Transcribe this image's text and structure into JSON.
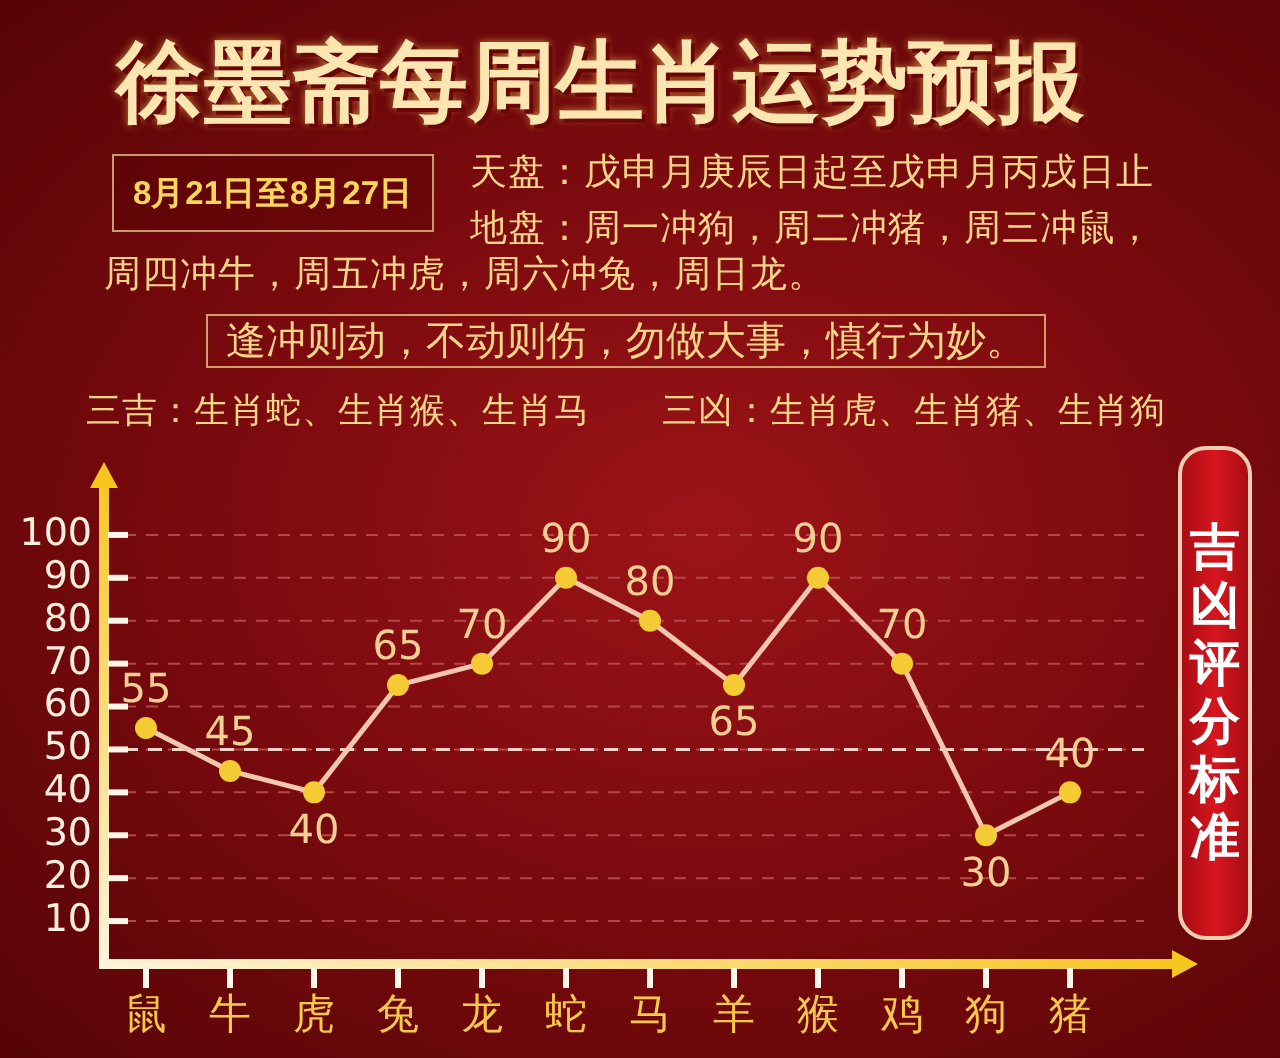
{
  "chart_data": {
    "type": "line",
    "title": "徐墨斋每周生肖运势预报",
    "subtitle": "8月21日至8月27日",
    "annotations": [
      "天盘：戊申月庚辰日起至戊申月丙戌日止",
      "地盘：周一冲狗，周二冲猪，周三冲鼠，周四冲牛，周五冲虎，周六冲兔，周日龙。",
      "逢冲则动，不动则伤，勿做大事，慎行为妙。",
      "三吉：生肖蛇、生肖猴、生肖马",
      "三凶：生肖虎、生肖猪、生肖狗",
      "吉凶评分标准"
    ],
    "categories": [
      "鼠",
      "牛",
      "虎",
      "兔",
      "龙",
      "蛇",
      "马",
      "羊",
      "猴",
      "鸡",
      "狗",
      "猪"
    ],
    "series": [
      {
        "color": "#f3c6ae",
        "values": [
          55,
          45,
          40,
          65,
          70,
          90,
          80,
          65,
          90,
          70,
          30,
          40
        ]
      }
    ],
    "marker": "circle",
    "line_style": "solid",
    "data_labels": true,
    "grid": "y",
    "ylim": [
      0,
      110
    ],
    "yticks": [
      10,
      20,
      30,
      40,
      50,
      60,
      70,
      80,
      90,
      100
    ],
    "ref_lines": [
      {
        "axis": "y",
        "value": 50,
        "color": "#f6d5c8",
        "line_style": "dashed"
      }
    ]
  }
}
